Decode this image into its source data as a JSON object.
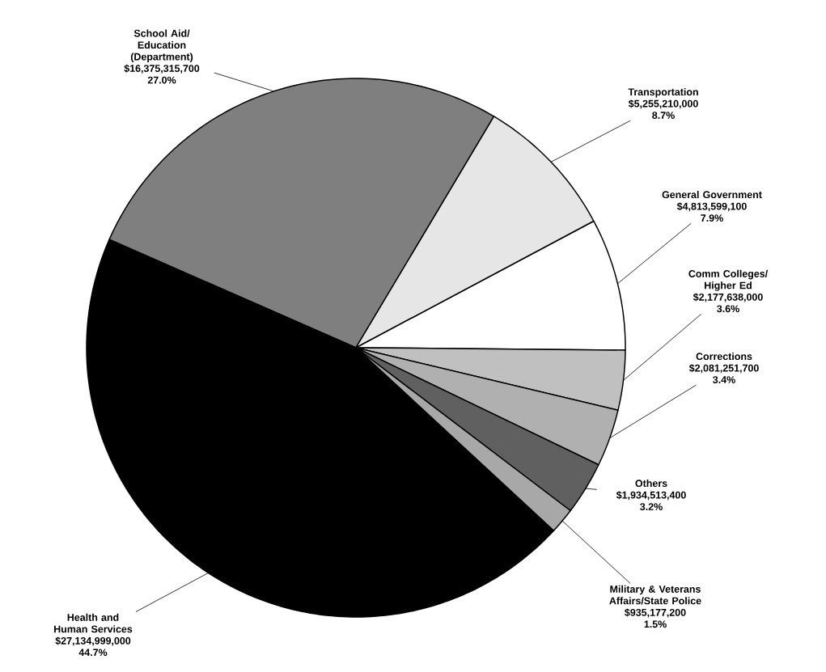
{
  "chart_data": {
    "type": "pie",
    "categories": [
      "School Aid/ Education (Department)",
      "Transportation",
      "General Government",
      "Comm Colleges/ Higher Ed",
      "Corrections",
      "Others",
      "Military & Veterans Affairs/State Police",
      "Health and Human Services"
    ],
    "values": [
      16375315700,
      5255210000,
      4813599100,
      2177638000,
      2081251700,
      1934513400,
      935177200,
      27134999000
    ],
    "value_labels": [
      "$16,375,315,700",
      "$5,255,210,000",
      "$4,813,599,100",
      "$2,177,638,000",
      "$2,081,251,700",
      "$1,934,513,400",
      "$935,177,200",
      "$27,134,999,000"
    ],
    "annotations": [
      "27.0%",
      "8.7%",
      "7.9%",
      "3.6%",
      "3.4%",
      "3.2%",
      "1.5%",
      "44.7%"
    ],
    "colors": [
      "#7f7f7f",
      "#e6e6e6",
      "#ffffff",
      "#c0c0c0",
      "#b0b0b0",
      "#606060",
      "#a8a8a8",
      "#000000"
    ]
  }
}
